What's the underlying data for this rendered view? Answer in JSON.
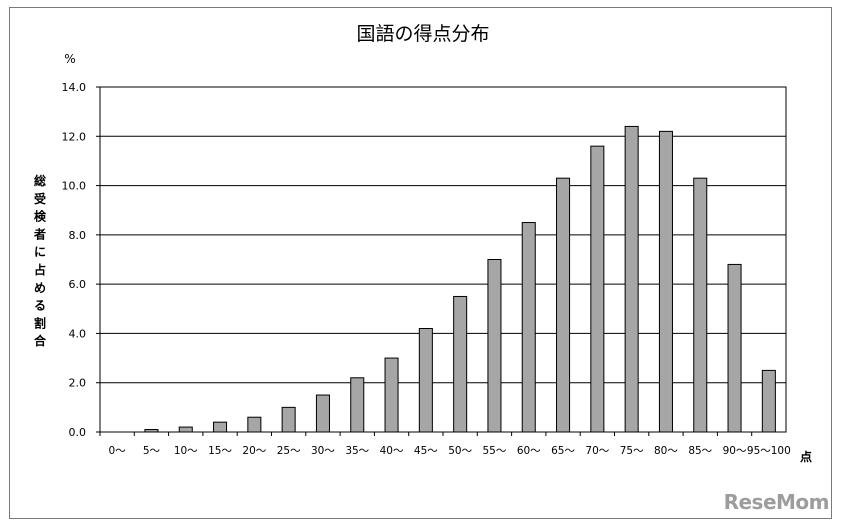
{
  "chart_data": {
    "type": "bar",
    "title": "国語の得点分布",
    "ylabel": "総受検者に占める割合",
    "y_unit": "%",
    "x_unit": "点",
    "ylim": [
      0,
      14
    ],
    "yticks": [
      "0.0",
      "2.0",
      "4.0",
      "6.0",
      "8.0",
      "10.0",
      "12.0",
      "14.0"
    ],
    "grid": true,
    "bar_color": "#a6a6a6",
    "categories": [
      "0～",
      "5～",
      "10～",
      "15～",
      "20～",
      "25～",
      "30～",
      "35～",
      "40～",
      "45～",
      "50～",
      "55～",
      "60～",
      "65～",
      "70～",
      "75～",
      "80～",
      "85～",
      "90～",
      "95～100"
    ],
    "values": [
      0.0,
      0.1,
      0.2,
      0.4,
      0.6,
      1.0,
      1.5,
      2.2,
      3.0,
      4.2,
      5.5,
      7.0,
      8.5,
      10.3,
      11.6,
      12.4,
      12.2,
      10.3,
      6.8,
      2.5
    ]
  },
  "watermark": {
    "text": "ReseMom"
  }
}
